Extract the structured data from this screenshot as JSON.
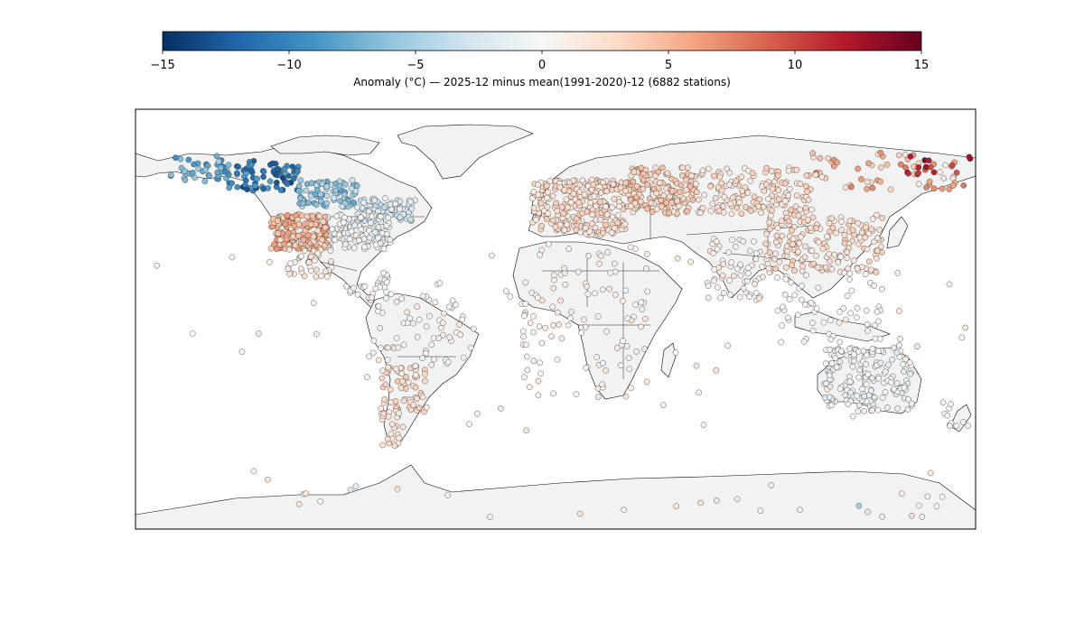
{
  "colorbar": {
    "label": "Anomaly (°C) — 2025-12 minus mean(1991-2020)-12 (6882 stations)",
    "vmin": -15,
    "vmax": 15,
    "ticks": [
      -15,
      -10,
      -5,
      0,
      5,
      10,
      15
    ],
    "tick_labels": [
      "−15",
      "−10",
      "−5",
      "0",
      "5",
      "10",
      "15"
    ],
    "colormap": "RdBu_r",
    "colors": [
      "#053061",
      "#2166ac",
      "#4393c3",
      "#92c5de",
      "#d1e5f0",
      "#f7f7f7",
      "#fddbc7",
      "#f4a582",
      "#d6604d",
      "#b2182b",
      "#67001f"
    ]
  },
  "map": {
    "projection": "equirectangular",
    "lon_range": [
      -180,
      180
    ],
    "lat_range": [
      -90,
      90
    ],
    "land_color": "#f2f2f2",
    "ocean_color": "#ffffff"
  },
  "chart_data": {
    "type": "scatter",
    "x_name": "longitude",
    "y_name": "latitude",
    "value_name": "anomaly",
    "xlim": [
      -180,
      180
    ],
    "ylim": [
      -90,
      90
    ],
    "station_count": 6882,
    "sample_stations": [
      {
        "lon": -150,
        "lat": 64,
        "v": -6
      },
      {
        "lon": -140,
        "lat": 62,
        "v": -9
      },
      {
        "lon": -130,
        "lat": 63,
        "v": -12
      },
      {
        "lon": -120,
        "lat": 62,
        "v": -13
      },
      {
        "lon": -115,
        "lat": 58,
        "v": -11
      },
      {
        "lon": -110,
        "lat": 55,
        "v": -7
      },
      {
        "lon": -100,
        "lat": 58,
        "v": -5
      },
      {
        "lon": -95,
        "lat": 52,
        "v": -3
      },
      {
        "lon": -85,
        "lat": 48,
        "v": -2
      },
      {
        "lon": -75,
        "lat": 44,
        "v": -1
      },
      {
        "lon": -112,
        "lat": 40,
        "v": 6
      },
      {
        "lon": -106,
        "lat": 36,
        "v": 6
      },
      {
        "lon": -100,
        "lat": 34,
        "v": 4
      },
      {
        "lon": -118,
        "lat": 34,
        "v": 3
      },
      {
        "lon": -90,
        "lat": 32,
        "v": 1
      },
      {
        "lon": -60,
        "lat": -20,
        "v": 1
      },
      {
        "lon": -65,
        "lat": -35,
        "v": 3
      },
      {
        "lon": -70,
        "lat": -45,
        "v": 2
      },
      {
        "lon": 10,
        "lat": 50,
        "v": 3
      },
      {
        "lon": 30,
        "lat": 55,
        "v": 3
      },
      {
        "lon": 50,
        "lat": 55,
        "v": 4
      },
      {
        "lon": 80,
        "lat": 55,
        "v": 3
      },
      {
        "lon": 100,
        "lat": 42,
        "v": 4
      },
      {
        "lon": 150,
        "lat": 65,
        "v": 8
      },
      {
        "lon": 160,
        "lat": 68,
        "v": 12
      },
      {
        "lon": 170,
        "lat": 66,
        "v": 10
      },
      {
        "lon": 130,
        "lat": -25,
        "v": 0
      },
      {
        "lon": 145,
        "lat": -30,
        "v": -1
      },
      {
        "lon": 20,
        "lat": -28,
        "v": 1
      },
      {
        "lon": 130,
        "lat": -80,
        "v": -5
      }
    ]
  }
}
